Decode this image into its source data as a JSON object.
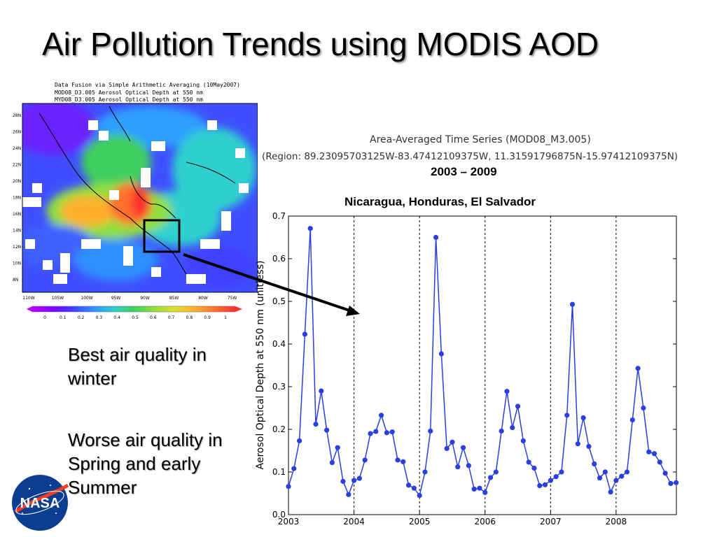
{
  "slide": {
    "title": "Air Pollution Trends using MODIS AOD"
  },
  "map": {
    "title_lines": [
      "Data Fusion via Simple Arithmetic Averaging (10May2007)",
      "MOD08_D3.005 Aerosol Optical Depth at 550 nm",
      "MYD08_D3.005 Aerosol Optical Depth at 550 nm"
    ],
    "lat_labels": [
      "28N",
      "26N",
      "24N",
      "22N",
      "20N",
      "18N",
      "16N",
      "14N",
      "12N",
      "10N",
      "8N"
    ],
    "lon_labels": [
      "110W",
      "105W",
      "100W",
      "95W",
      "90W",
      "85W",
      "80W",
      "75W"
    ],
    "colorbar_labels": [
      "0",
      "0.1",
      "0.2",
      "0.3",
      "0.4",
      "0.5",
      "0.6",
      "0.7",
      "0.8",
      "0.9",
      "1"
    ],
    "colors": [
      "#7f00ff",
      "#3f3fff",
      "#2f8fff",
      "#2fcfcf",
      "#3fcf5f",
      "#8fdf3f",
      "#dfdf2f",
      "#ffaf2f",
      "#ff6f2f",
      "#ff2f2f",
      "#ffffff"
    ]
  },
  "notes": {
    "winter": "Best air quality in winter",
    "spring": "Worse air quality in Spring and early Summer"
  },
  "chart_data": {
    "type": "line",
    "title": "Area-Averaged Time Series (MOD08_M3.005)",
    "subtitle": "(Region: 89.23095703125W-83.47412109375W, 11.31591796875N-15.97412109375N)",
    "years_label": "2003 – 2009",
    "region_label": "Nicaragua, Honduras, El Salvador",
    "ylabel": "Aerosol Optical Depth at 550 nm  (unitless)",
    "ylim": [
      0,
      0.7
    ],
    "xlim": [
      2003,
      2008.92
    ],
    "yticks": [
      "0.0",
      "0.1",
      "0.2",
      "0.3",
      "0.4",
      "0.5",
      "0.6",
      "0.7"
    ],
    "xticks": [
      "2003",
      "2004",
      "2005",
      "2006",
      "2007",
      "2008"
    ],
    "series": [
      {
        "color": "#2a3fe0",
        "values": [
          0.066,
          0.108,
          0.173,
          0.423,
          0.671,
          0.212,
          0.29,
          0.198,
          0.122,
          0.157,
          0.078,
          0.047,
          0.08,
          0.085,
          0.128,
          0.19,
          0.195,
          0.233,
          0.192,
          0.194,
          0.128,
          0.124,
          0.069,
          0.062,
          0.045,
          0.1,
          0.196,
          0.65,
          0.377,
          0.155,
          0.17,
          0.112,
          0.157,
          0.115,
          0.06,
          0.062,
          0.052,
          0.087,
          0.1,
          0.196,
          0.289,
          0.204,
          0.254,
          0.173,
          0.123,
          0.109,
          0.068,
          0.07,
          0.08,
          0.089,
          0.1,
          0.233,
          0.493,
          0.166,
          0.227,
          0.16,
          0.119,
          0.086,
          0.1,
          0.053,
          0.08,
          0.09,
          0.1,
          0.222,
          0.343,
          0.25,
          0.147,
          0.143,
          0.123,
          0.097,
          0.073,
          0.075
        ]
      }
    ]
  }
}
